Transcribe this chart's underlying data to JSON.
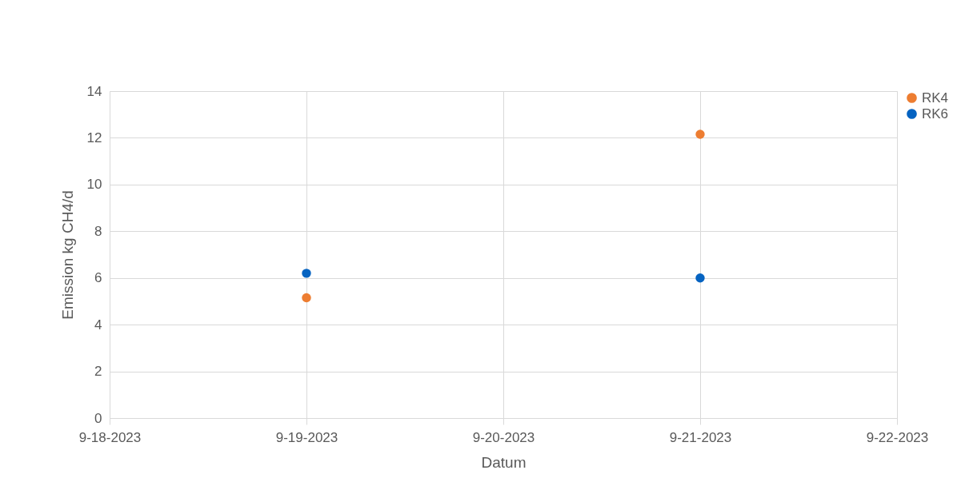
{
  "chart_data": {
    "type": "scatter",
    "xlabel": "Datum",
    "ylabel": "Emission kg CH4/d",
    "x": [
      "2023-09-19",
      "2023-09-21"
    ],
    "series": [
      {
        "name": "RK4",
        "color": "#ed7d31",
        "values": [
          5.15,
          12.15
        ]
      },
      {
        "name": "RK6",
        "color": "#0563c1",
        "values": [
          6.2,
          6.0
        ]
      }
    ],
    "xlim": [
      "2023-09-18",
      "2023-09-22"
    ],
    "xticks": [
      {
        "value": "2023-09-18",
        "label": "9-18-2023"
      },
      {
        "value": "2023-09-19",
        "label": "9-19-2023"
      },
      {
        "value": "2023-09-20",
        "label": "9-20-2023"
      },
      {
        "value": "2023-09-21",
        "label": "9-21-2023"
      },
      {
        "value": "2023-09-22",
        "label": "9-22-2023"
      }
    ],
    "ylim": [
      0,
      14
    ],
    "yticks": [
      0,
      2,
      4,
      6,
      8,
      10,
      12,
      14
    ],
    "grid": true,
    "legend": "right",
    "marker": "circle"
  }
}
